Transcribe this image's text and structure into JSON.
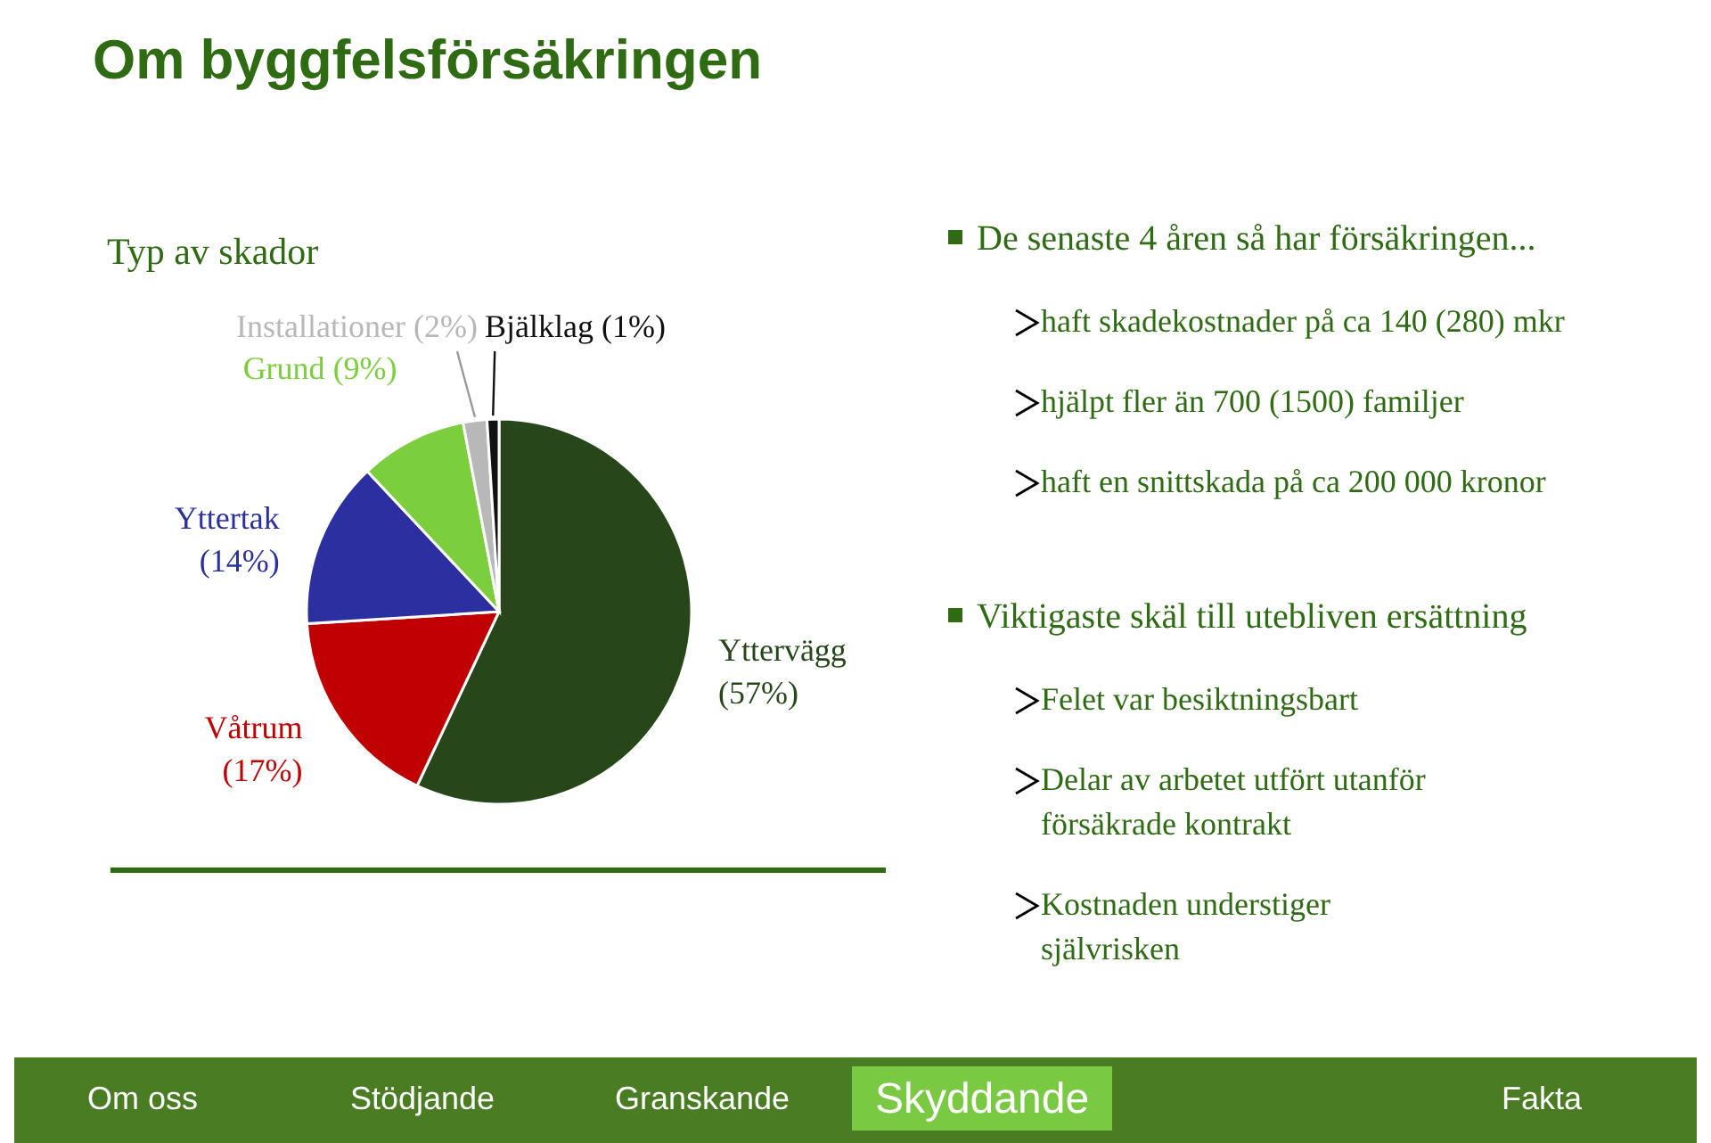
{
  "chart_data": [
    {
      "type": "pie",
      "title": "Om byggfelsförsäkringen",
      "subtitle": "Typ av skador",
      "categories": [
        "Yttervägg",
        "Våtrum",
        "Yttertak",
        "Grund",
        "Installationer",
        "Bjälklag"
      ],
      "values": [
        57,
        17,
        14,
        9,
        2,
        1
      ],
      "value_labels": [
        "(57%)",
        "(17%)",
        "(14%)",
        "(9%)",
        "(2%)",
        "(1%)"
      ],
      "colors": [
        "#27461a",
        "#c00000",
        "#2b2fa0",
        "#7ccf3c",
        "#b8b8b8",
        "#111111"
      ]
    },
    {
      "type": "other",
      "title": "De senaste 4 åren så har försäkringen...",
      "annotations": [
        "haft skadekostnader på ca 140 (280) mkr",
        "hjälpt fler än 700 (1500) familjer",
        "haft en snittskada på ca 200 000 kronor"
      ]
    },
    {
      "type": "other",
      "title": "Viktigaste skäl till utebliven ersättning",
      "annotations": [
        "Felet var besiktningsbart",
        "Delar av arbetet utfört utanför försäkrade kontrakt",
        "Kostnaden understiger självrisken"
      ]
    },
    {
      "type": "other",
      "categories": [
        "Om oss",
        "Stödjande",
        "Granskande",
        "Skyddande",
        null,
        "Fakta"
      ]
    }
  ]
}
